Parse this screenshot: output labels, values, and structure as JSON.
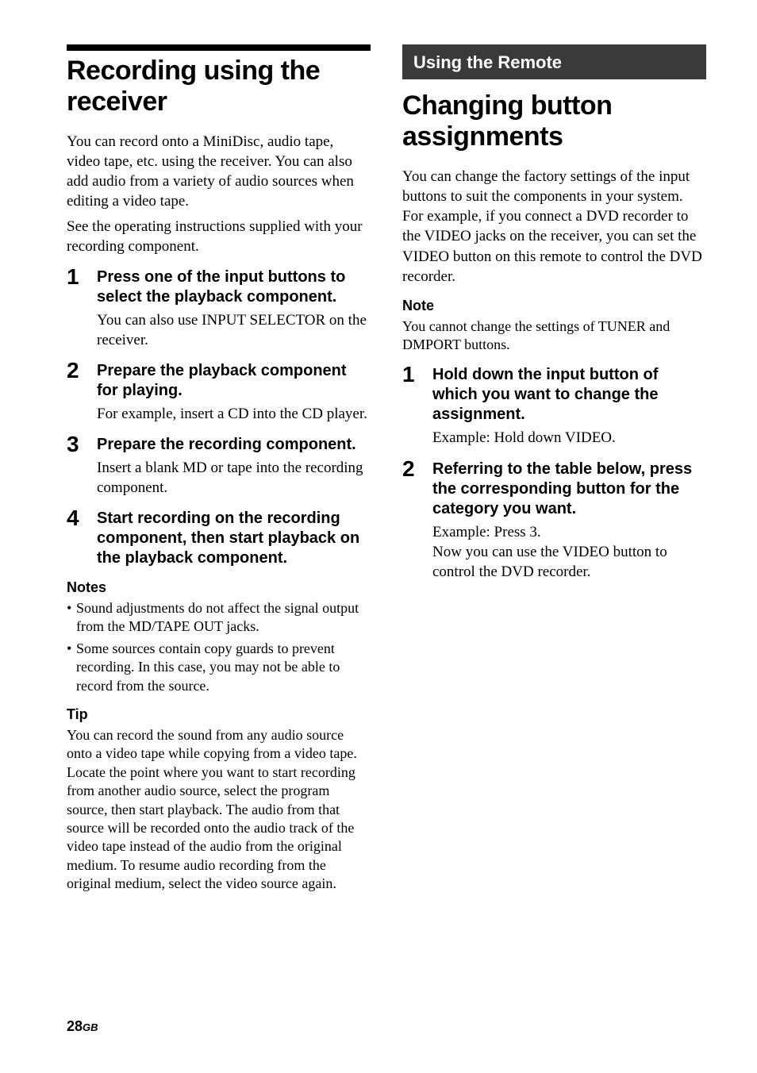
{
  "left": {
    "title": "Recording using the receiver",
    "intro1": "You can record onto a MiniDisc, audio tape, video tape, etc. using the receiver. You can also add audio from a variety of audio sources when editing a video tape.",
    "intro2": "See the operating instructions supplied with your recording component.",
    "steps": [
      {
        "title": "Press one of the input buttons to select the playback component.",
        "body": "You can also use INPUT SELECTOR on the receiver."
      },
      {
        "title": "Prepare the playback component for playing.",
        "body": "For example, insert a CD into the CD player."
      },
      {
        "title": "Prepare the recording component.",
        "body": "Insert a blank MD or tape into the recording component."
      },
      {
        "title": "Start recording on the recording component, then start playback on the playback component.",
        "body": ""
      }
    ],
    "notes_h": "Notes",
    "notes": [
      "Sound adjustments do not affect the signal output from the MD/TAPE OUT jacks.",
      "Some sources contain copy guards to prevent recording. In this case, you may not be able to record from the source."
    ],
    "tip_h": "Tip",
    "tip": "You can record the sound from any audio source onto a video tape while copying from a video tape. Locate the point where you want to start recording from another audio source, select the program source, then start playback. The audio from that source will be recorded onto the audio track of the video tape instead of the audio from the original medium. To resume audio recording from the original medium, select the video source again."
  },
  "right": {
    "banner": "Using the Remote",
    "title": "Changing button assignments",
    "intro": "You can change the factory settings of the input buttons to suit the components in your system. For example, if you connect a DVD recorder to the VIDEO jacks on the receiver, you can set the VIDEO button on this remote to control the DVD recorder.",
    "note_h": "Note",
    "note": "You cannot change the settings of TUNER and DMPORT buttons.",
    "steps": [
      {
        "title": "Hold down the input button of which you want to change the assignment.",
        "body": "Example: Hold down VIDEO."
      },
      {
        "title": "Referring to the table below, press the corresponding button for the category you want.",
        "body": "Example: Press 3.\nNow you can use the VIDEO button to control the DVD recorder."
      }
    ]
  },
  "footer": {
    "page": "28",
    "region": "GB"
  }
}
